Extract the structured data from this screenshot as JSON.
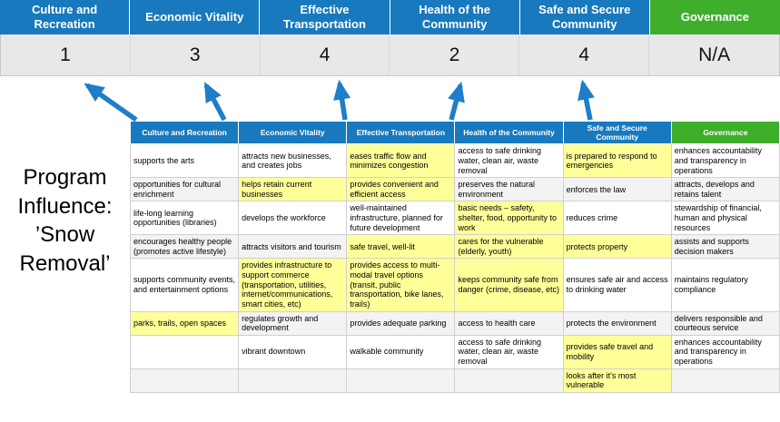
{
  "title": {
    "line1": "Program Influence:",
    "line2": "’Snow Removal’"
  },
  "colors": {
    "blue": "#1879BE",
    "green": "#3EAE2B",
    "highlight": "#FFFF99",
    "scorebg": "#E8E8E8",
    "arrow": "#1E7EC8"
  },
  "pillars": [
    {
      "label": "Culture and Recreation",
      "score": "1",
      "accent": "blue"
    },
    {
      "label": "Economic Vitality",
      "score": "3",
      "accent": "blue"
    },
    {
      "label": "Effective Transportation",
      "score": "4",
      "accent": "blue"
    },
    {
      "label": "Health of the Community",
      "score": "2",
      "accent": "blue"
    },
    {
      "label": "Safe and Secure Community",
      "score": "4",
      "accent": "blue"
    },
    {
      "label": "Governance",
      "score": "N/A",
      "accent": "green"
    }
  ],
  "matrix": {
    "rows": [
      [
        {
          "text": "supports the arts",
          "highlight": false
        },
        {
          "text": "attracts new businesses, and creates jobs",
          "highlight": false
        },
        {
          "text": "eases traffic flow and minimizes congestion",
          "highlight": true
        },
        {
          "text": "access to safe drinking water, clean air, waste removal",
          "highlight": false
        },
        {
          "text": "is prepared to respond to emergencies",
          "highlight": true
        },
        {
          "text": "enhances accountability and transparency in operations",
          "highlight": false
        }
      ],
      [
        {
          "text": "opportunities for cultural enrichment",
          "highlight": false
        },
        {
          "text": "helps retain current businesses",
          "highlight": true
        },
        {
          "text": "provides convenient and efficient access",
          "highlight": true
        },
        {
          "text": "preserves the natural environment",
          "highlight": false
        },
        {
          "text": "enforces the law",
          "highlight": false
        },
        {
          "text": "attracts, develops and retains talent",
          "highlight": false
        }
      ],
      [
        {
          "text": "life-long learning opportunities (libraries)",
          "highlight": false
        },
        {
          "text": "develops the workforce",
          "highlight": false
        },
        {
          "text": "well-maintained infrastructure, planned for future development",
          "highlight": false
        },
        {
          "text": "basic needs – safety, shelter, food, opportunity to work",
          "highlight": true
        },
        {
          "text": "reduces crime",
          "highlight": false
        },
        {
          "text": "stewardship of financial, human and physical resources",
          "highlight": false
        }
      ],
      [
        {
          "text": "encourages healthy people (promotes active lifestyle)",
          "highlight": false
        },
        {
          "text": "attracts visitors and tourism",
          "highlight": false
        },
        {
          "text": "safe travel, well-lit",
          "highlight": true
        },
        {
          "text": "cares for the vulnerable (elderly, youth)",
          "highlight": true
        },
        {
          "text": "protects property",
          "highlight": true
        },
        {
          "text": "assists and supports decision makers",
          "highlight": false
        }
      ],
      [
        {
          "text": "supports community events, and entertainment options",
          "highlight": false
        },
        {
          "text": "provides infrastructure to support commerce (transportation, utilities, internet/communications, smart cities, etc)",
          "highlight": true
        },
        {
          "text": "provides access to multi-modal travel options (transit, public transportation, bike lanes, trails)",
          "highlight": true
        },
        {
          "text": "keeps community safe from danger (crime, disease, etc)",
          "highlight": true
        },
        {
          "text": "ensures safe air and access to drinking water",
          "highlight": false
        },
        {
          "text": "maintains regulatory compliance",
          "highlight": false
        }
      ],
      [
        {
          "text": "parks, trails, open spaces",
          "highlight": true
        },
        {
          "text": "regulates growth and development",
          "highlight": false
        },
        {
          "text": "provides adequate parking",
          "highlight": false
        },
        {
          "text": "access to health care",
          "highlight": false
        },
        {
          "text": "protects the environment",
          "highlight": false
        },
        {
          "text": "delivers responsible and courteous service",
          "highlight": false
        }
      ],
      [
        {
          "text": "",
          "highlight": false
        },
        {
          "text": "vibrant downtown",
          "highlight": false
        },
        {
          "text": "walkable community",
          "highlight": false
        },
        {
          "text": "access to safe drinking water, clean air, waste removal",
          "highlight": false
        },
        {
          "text": "provides safe travel and mobility",
          "highlight": true
        },
        {
          "text": "enhances accountability and transparency in operations",
          "highlight": false
        }
      ],
      [
        {
          "text": "",
          "highlight": false
        },
        {
          "text": "",
          "highlight": false
        },
        {
          "text": "",
          "highlight": false
        },
        {
          "text": "",
          "highlight": false
        },
        {
          "text": "looks after it's most vulnerable",
          "highlight": true
        },
        {
          "text": "",
          "highlight": false
        }
      ]
    ]
  }
}
